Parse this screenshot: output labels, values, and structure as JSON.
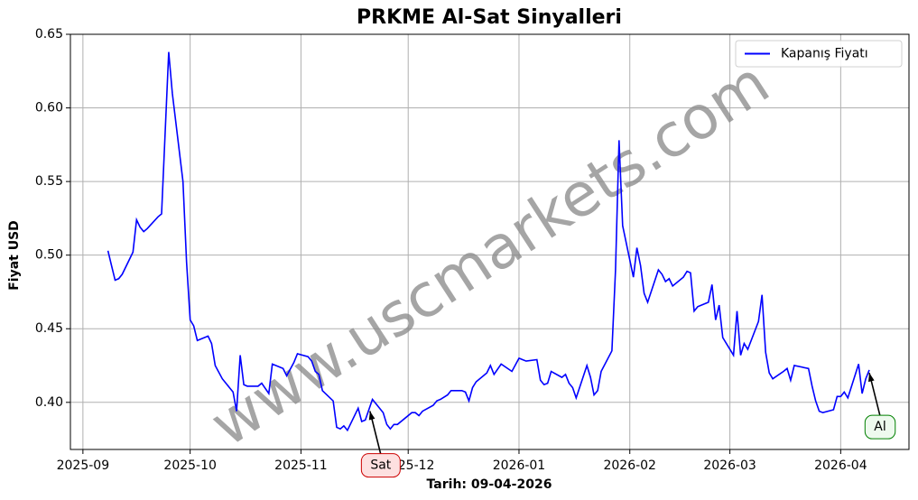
{
  "chart_data": {
    "type": "line",
    "title": "PRKME Al-Sat Sinyalleri",
    "xlabel": "Tarih: 09-04-2026",
    "ylabel": "Fiyat USD",
    "watermark": "www.uscmarkets.com",
    "grid": true,
    "legend": "upper right",
    "xlim": [
      -3.5,
      231.1
    ],
    "ylim": [
      0.368,
      0.65
    ],
    "xticks": [
      {
        "value": 0,
        "label": "2025-09"
      },
      {
        "value": 30,
        "label": "2025-10"
      },
      {
        "value": 61,
        "label": "2025-11"
      },
      {
        "value": 91,
        "label": "2025-12"
      },
      {
        "value": 122,
        "label": "2026-01"
      },
      {
        "value": 153,
        "label": "2026-02"
      },
      {
        "value": 181,
        "label": "2026-03"
      },
      {
        "value": 212,
        "label": "2026-04"
      }
    ],
    "yticks": [
      {
        "value": 0.4,
        "label": "0.40"
      },
      0.45,
      {
        "value": 0.5,
        "label": "0.50"
      },
      0.55,
      {
        "value": 0.6,
        "label": "0.60"
      },
      0.65
    ],
    "x": [
      7,
      8,
      9,
      10,
      11,
      14,
      15,
      16,
      17,
      18,
      21,
      22,
      24,
      25,
      28,
      29,
      30,
      31,
      32,
      35,
      36,
      37,
      39,
      42,
      43,
      44,
      45,
      46,
      49,
      50,
      52,
      53,
      56,
      57,
      59,
      60,
      63,
      64,
      65,
      66,
      67,
      70,
      71,
      72,
      73,
      74,
      77,
      78,
      79,
      81,
      84,
      85,
      86,
      87,
      88,
      92,
      93,
      94,
      95,
      98,
      99,
      100,
      102,
      103,
      106,
      107,
      108,
      109,
      110,
      113,
      114,
      115,
      117,
      120,
      122,
      123,
      124,
      127,
      128,
      129,
      130,
      131,
      134,
      135,
      136,
      137,
      138,
      141,
      142,
      143,
      144,
      145,
      148,
      149,
      150,
      151,
      154,
      155,
      156,
      157,
      158,
      161,
      162,
      163,
      164,
      165,
      168,
      169,
      170,
      171,
      172,
      175,
      176,
      177,
      178,
      179,
      182,
      183,
      184,
      185,
      186,
      189,
      190,
      191,
      192,
      193,
      196,
      197,
      198,
      199,
      203,
      204,
      205,
      206,
      207,
      210,
      211,
      212,
      213,
      214,
      217,
      218,
      219,
      220
    ],
    "series": [
      {
        "name": "Kapanış Fiyatı",
        "color": "#0000ff",
        "values": [
          0.503,
          0.493,
          0.483,
          0.484,
          0.487,
          0.502,
          0.524,
          0.519,
          0.516,
          0.518,
          0.526,
          0.528,
          0.638,
          0.61,
          0.55,
          0.495,
          0.456,
          0.452,
          0.442,
          0.445,
          0.44,
          0.425,
          0.416,
          0.407,
          0.394,
          0.432,
          0.412,
          0.411,
          0.411,
          0.413,
          0.406,
          0.426,
          0.423,
          0.418,
          0.427,
          0.433,
          0.431,
          0.428,
          0.421,
          0.419,
          0.408,
          0.401,
          0.383,
          0.382,
          0.384,
          0.381,
          0.396,
          0.387,
          0.388,
          0.402,
          0.393,
          0.385,
          0.382,
          0.385,
          0.385,
          0.393,
          0.393,
          0.391,
          0.394,
          0.398,
          0.401,
          0.402,
          0.405,
          0.408,
          0.408,
          0.407,
          0.401,
          0.41,
          0.414,
          0.42,
          0.425,
          0.419,
          0.426,
          0.421,
          0.43,
          0.429,
          0.428,
          0.429,
          0.415,
          0.412,
          0.413,
          0.421,
          0.417,
          0.419,
          0.413,
          0.41,
          0.403,
          0.425,
          0.417,
          0.405,
          0.408,
          0.421,
          0.435,
          0.49,
          0.578,
          0.52,
          0.485,
          0.505,
          0.493,
          0.474,
          0.468,
          0.49,
          0.487,
          0.482,
          0.484,
          0.479,
          0.485,
          0.489,
          0.488,
          0.462,
          0.465,
          0.468,
          0.48,
          0.456,
          0.466,
          0.444,
          0.432,
          0.462,
          0.432,
          0.44,
          0.436,
          0.455,
          0.473,
          0.434,
          0.42,
          0.416,
          0.421,
          0.423,
          0.415,
          0.425,
          0.423,
          0.411,
          0.401,
          0.394,
          0.393,
          0.395,
          0.404,
          0.404,
          0.407,
          0.403,
          0.426,
          0.406,
          0.416,
          0.422
        ]
      }
    ],
    "annotations": [
      {
        "text": "Sat",
        "x": 80.3,
        "y": 0.394,
        "color": "#cc0000",
        "fill": "#fde0e0"
      },
      {
        "text": "Al",
        "x": 220,
        "y": 0.42,
        "color": "#008000",
        "fill": "#eefaee"
      }
    ]
  }
}
